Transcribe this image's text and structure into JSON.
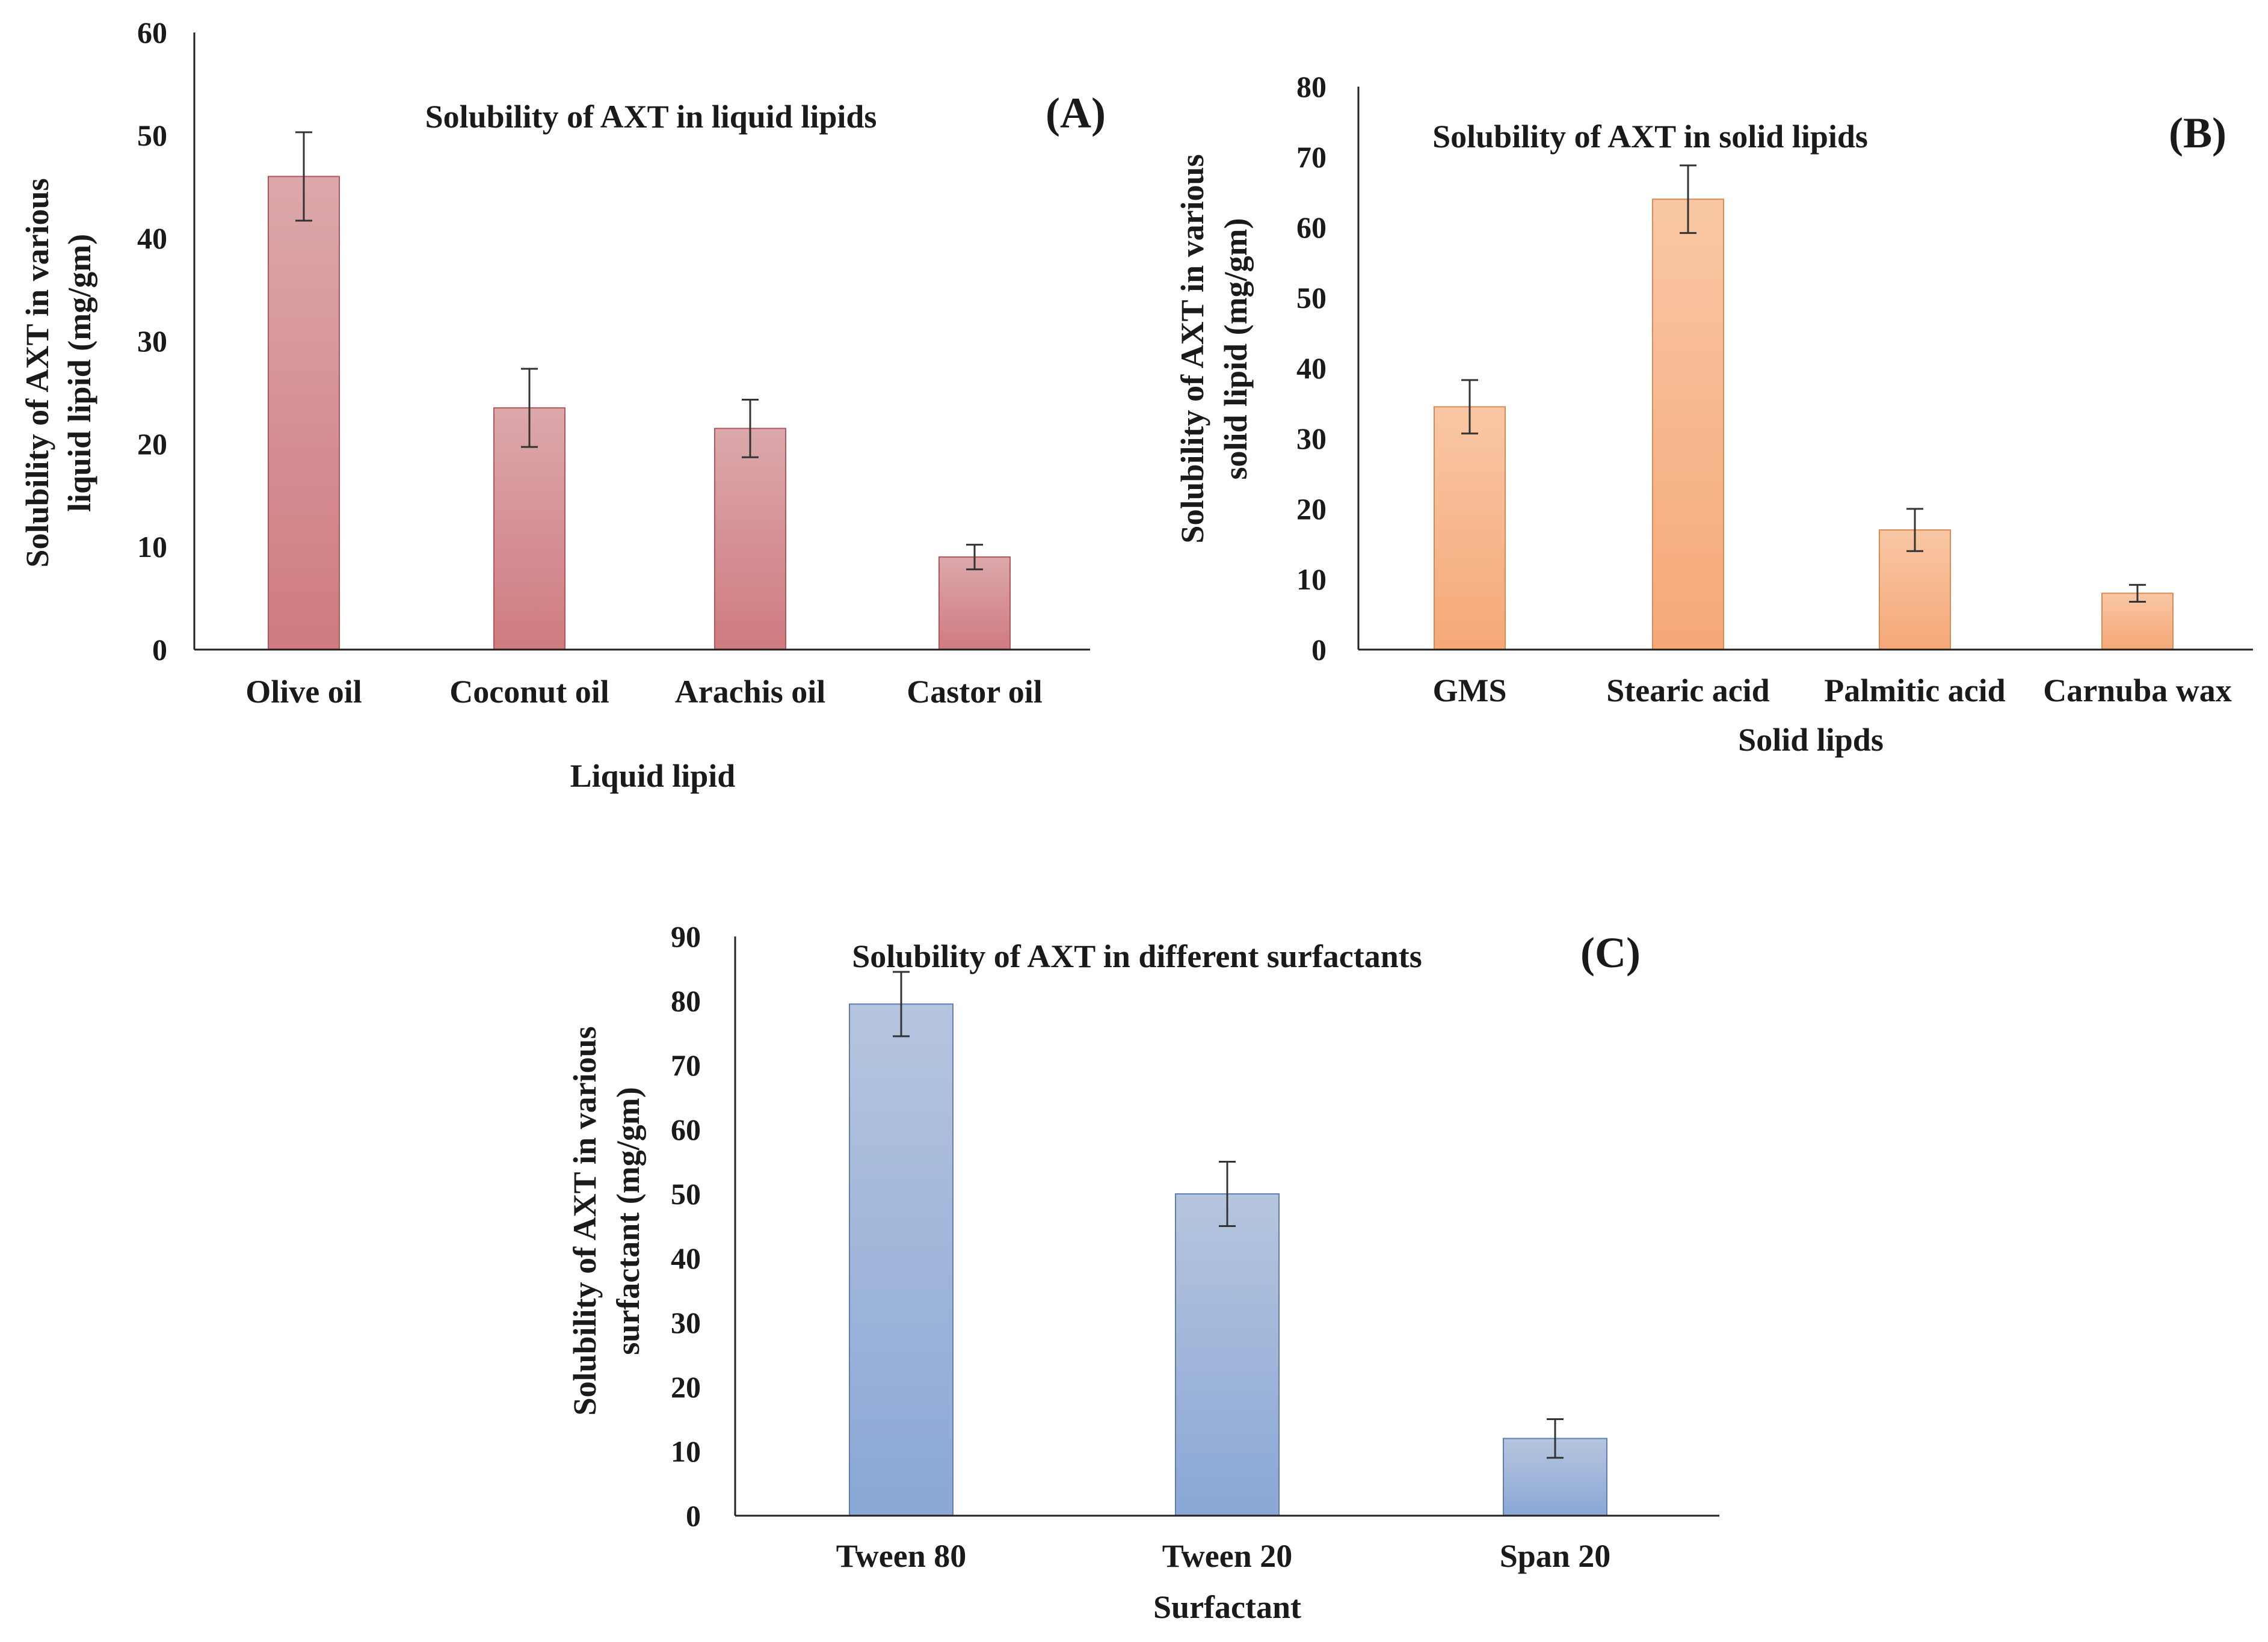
{
  "chart_data": [
    {
      "id": "A",
      "type": "bar",
      "panel_label": "(A)",
      "title": "Solubility  of AXT in liquid  lipids",
      "xlabel": "Liquid  lipid",
      "ylabel_lines": [
        "Solubility  of AXT in various",
        "liquid lipid (mg/gm)"
      ],
      "categories": [
        "Olive oil",
        "Coconut oil",
        "Arachis oil",
        "Castor oil"
      ],
      "values": [
        46,
        23.5,
        21.5,
        9
      ],
      "errors": [
        4.3,
        3.8,
        2.8,
        1.2
      ],
      "ylim": [
        0,
        60
      ],
      "yticks": [
        0,
        10,
        20,
        30,
        40,
        50,
        60
      ],
      "color_top": "#dca8ab",
      "color_bottom": "#cf7b80",
      "edge_color": "#b5555c"
    },
    {
      "id": "B",
      "type": "bar",
      "panel_label": "(B)",
      "title": "Solubility  of AXT in solid lipids",
      "xlabel": "Solid  lipds",
      "ylabel_lines": [
        "Solubility  of AXT in various",
        "solid lipid (mg/gm)"
      ],
      "categories": [
        "GMS",
        "Stearic acid",
        "Palmitic acid",
        "Carnuba wax"
      ],
      "values": [
        34.5,
        64,
        17,
        8
      ],
      "errors": [
        3.8,
        4.8,
        3,
        1.2
      ],
      "ylim": [
        0,
        80
      ],
      "yticks": [
        0,
        10,
        20,
        30,
        40,
        50,
        60,
        70,
        80
      ],
      "color_top": "#f9c7a4",
      "color_bottom": "#f5a878",
      "edge_color": "#d98a55"
    },
    {
      "id": "C",
      "type": "bar",
      "panel_label": "(C)",
      "title": "Solubility  of AXT in different  surfactants",
      "xlabel": "Surfactant",
      "ylabel_lines": [
        "Solubility of AXT in various",
        "surfactant (mg/gm)"
      ],
      "categories": [
        "Tween 80",
        "Tween 20",
        "Span 20"
      ],
      "values": [
        79.5,
        50,
        12
      ],
      "errors": [
        5,
        5,
        3
      ],
      "ylim": [
        0,
        90
      ],
      "yticks": [
        0,
        10,
        20,
        30,
        40,
        50,
        60,
        70,
        80,
        90
      ],
      "color_top": "#b6c5de",
      "color_bottom": "#8aa7d6",
      "edge_color": "#5f7fb3"
    }
  ]
}
